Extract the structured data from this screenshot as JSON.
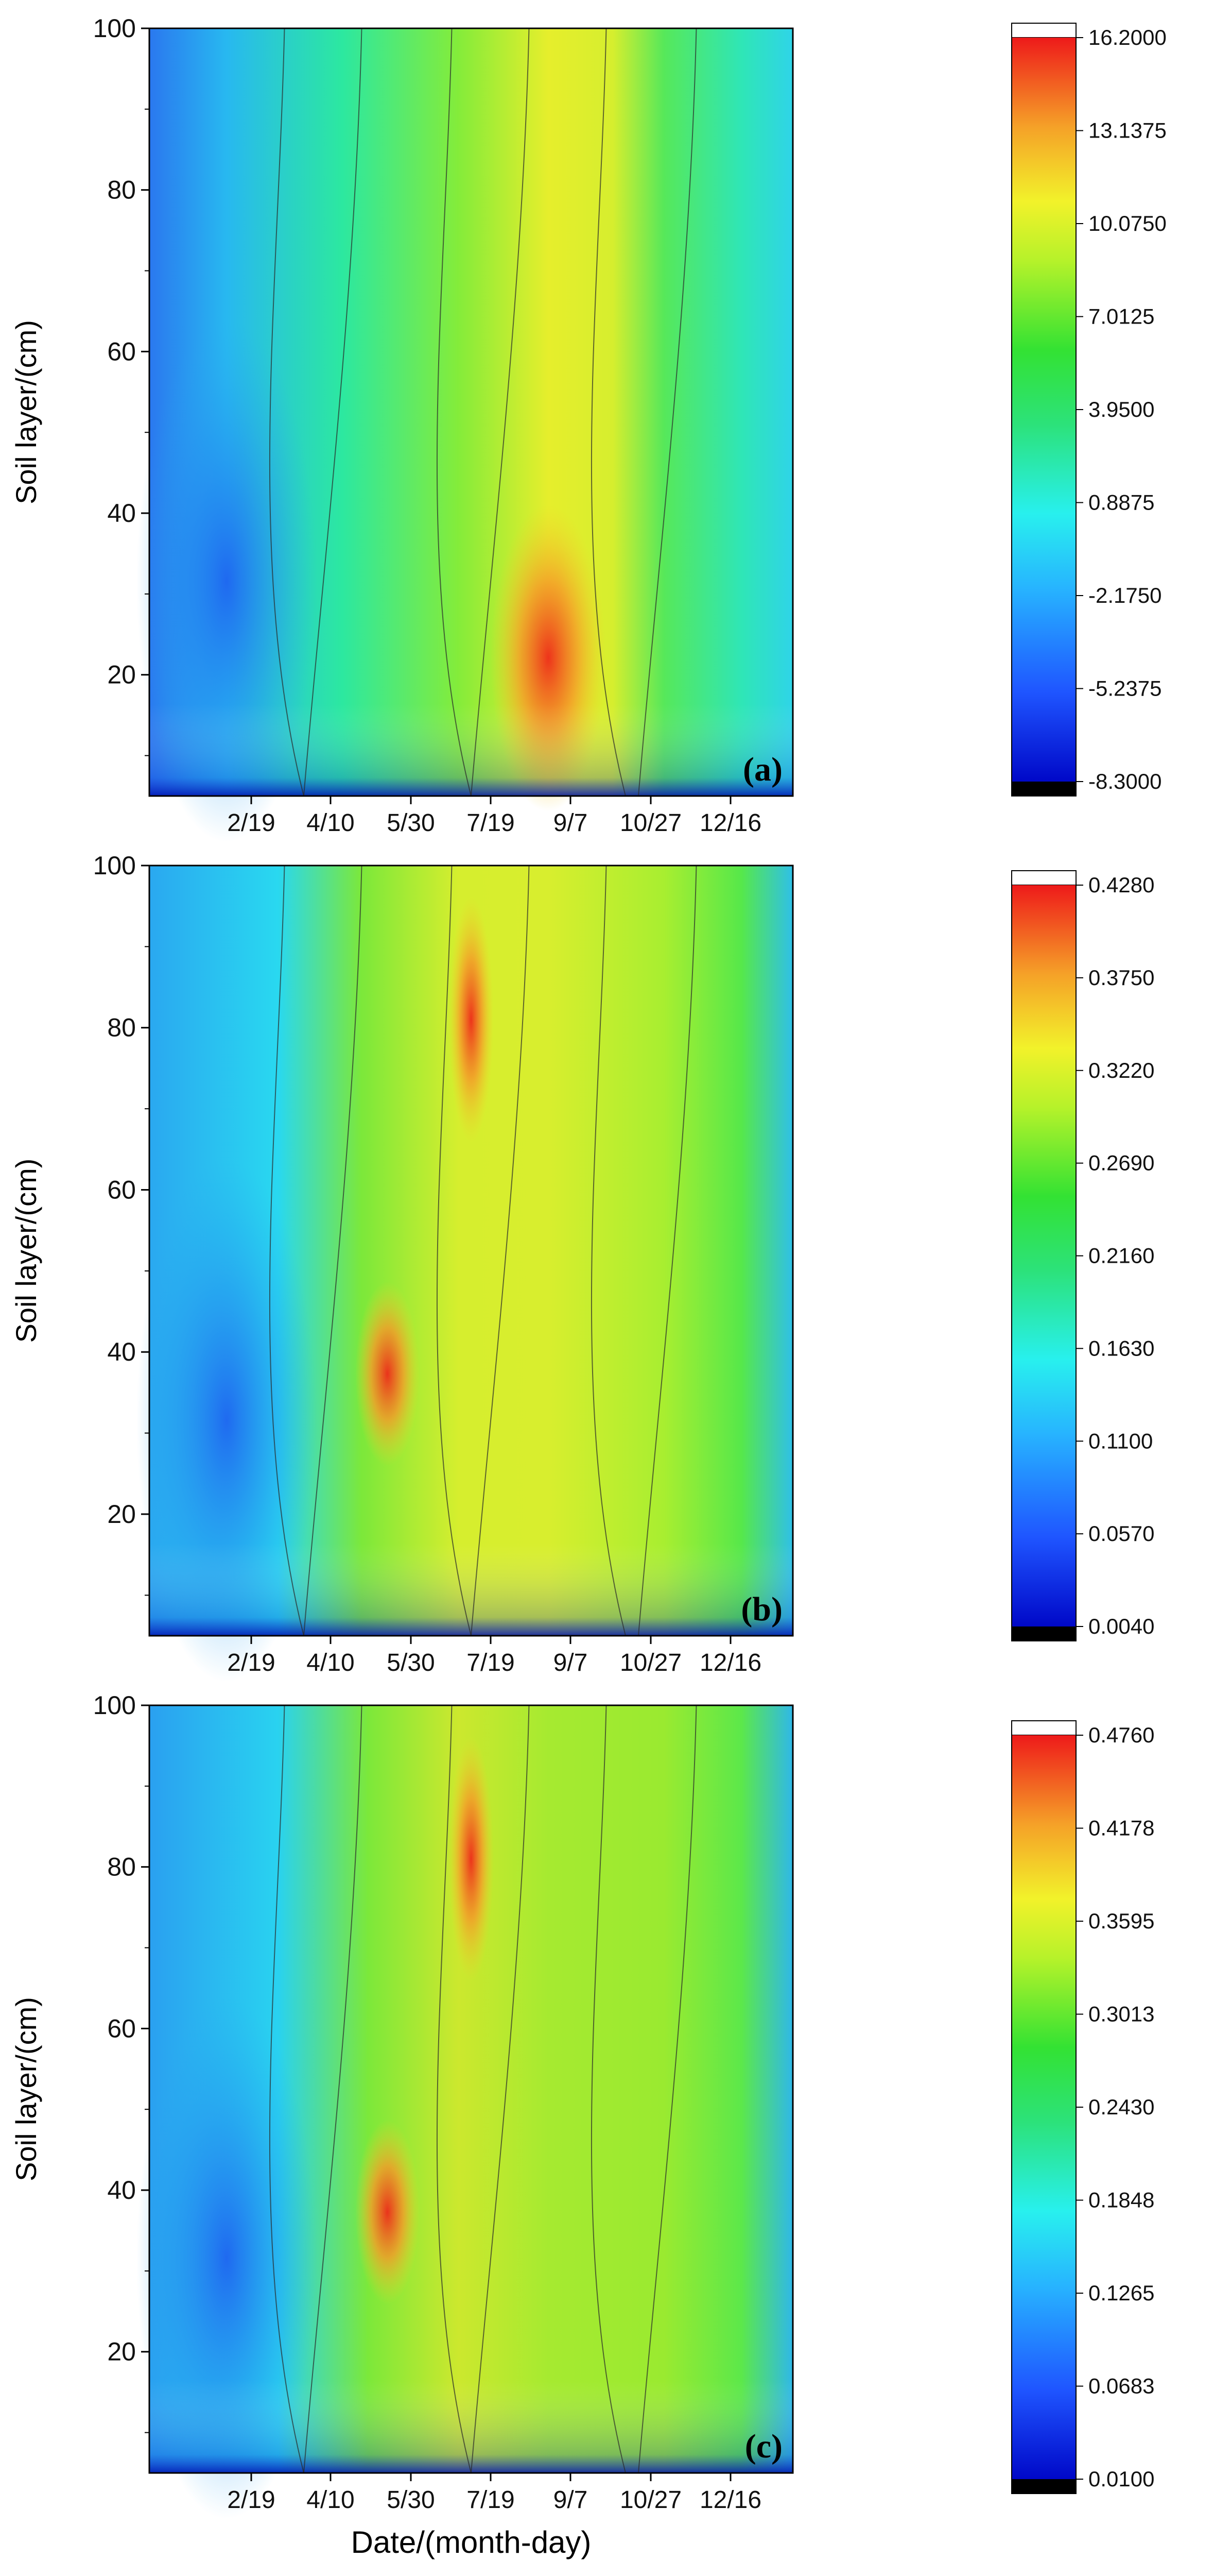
{
  "chart_data": [
    {
      "type": "heatmap",
      "panel_label": "(a)",
      "ylabel": "Soil layer/(cm)",
      "xlabel": "",
      "x_ticks": [
        "2/19",
        "4/10",
        "5/30",
        "7/19",
        "9/7",
        "10/27",
        "12/16"
      ],
      "y_ticks": [
        20,
        40,
        60,
        80,
        100
      ],
      "ylim": [
        5,
        100
      ],
      "colorbar": {
        "ticks": [
          "16.2000",
          "13.1375",
          "10.0750",
          "7.0125",
          "3.9500",
          "0.8875",
          "-2.1750",
          "-5.2375",
          "-8.3000"
        ],
        "min": -8.3,
        "max": 16.2
      }
    },
    {
      "type": "heatmap",
      "panel_label": "(b)",
      "ylabel": "Soil layer/(cm)",
      "xlabel": "",
      "x_ticks": [
        "2/19",
        "4/10",
        "5/30",
        "7/19",
        "9/7",
        "10/27",
        "12/16"
      ],
      "y_ticks": [
        20,
        40,
        60,
        80,
        100
      ],
      "ylim": [
        5,
        100
      ],
      "colorbar": {
        "ticks": [
          "0.4280",
          "0.3750",
          "0.3220",
          "0.2690",
          "0.2160",
          "0.1630",
          "0.1100",
          "0.0570",
          "0.0040"
        ],
        "min": 0.004,
        "max": 0.428
      }
    },
    {
      "type": "heatmap",
      "panel_label": "(c)",
      "ylabel": "Soil layer/(cm)",
      "xlabel": "Date/(month-day)",
      "x_ticks": [
        "2/19",
        "4/10",
        "5/30",
        "7/19",
        "9/7",
        "10/27",
        "12/16"
      ],
      "y_ticks": [
        20,
        40,
        60,
        80,
        100
      ],
      "ylim": [
        5,
        100
      ],
      "colorbar": {
        "ticks": [
          "0.4760",
          "0.4178",
          "0.3595",
          "0.3013",
          "0.2430",
          "0.1848",
          "0.1265",
          "0.0683",
          "0.0100"
        ],
        "min": 0.01,
        "max": 0.476
      }
    }
  ]
}
